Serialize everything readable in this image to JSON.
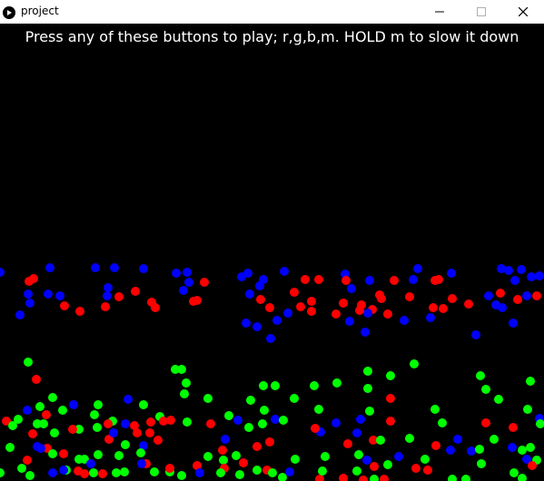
{
  "window": {
    "title": "project",
    "app_icon": "play-circle-icon",
    "controls": [
      "minimize-icon",
      "maximize-icon",
      "close-icon"
    ]
  },
  "canvas": {
    "background": "#000000",
    "instruction_text": "Press any of these buttons to play; r,g,b,m. HOLD m to slow it down"
  },
  "colors": {
    "red": "#ff0000",
    "green": "#00ff00",
    "blue": "#0000ff",
    "text": "#ffffff"
  }
}
